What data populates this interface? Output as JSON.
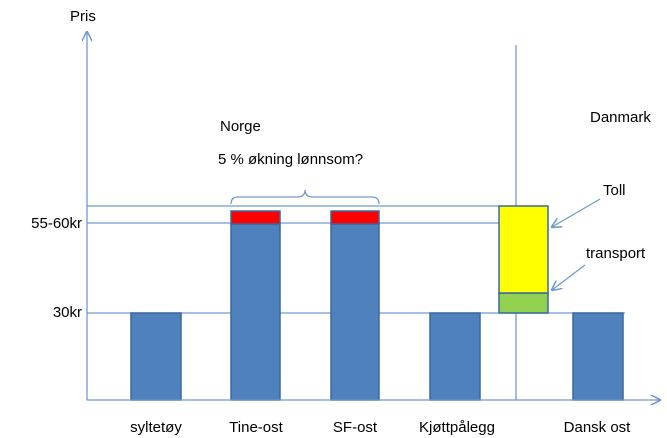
{
  "axis": {
    "y_label": "Pris",
    "ticks": [
      "55-60kr",
      "30kr"
    ]
  },
  "categories": [
    "syltetøy",
    "Tine-ost",
    "SF-ost",
    "Kjøttpålegg",
    "Dansk ost"
  ],
  "annotations": {
    "norway": "Norge",
    "question": "5 % økning lønnsom?",
    "denmark": "Danmark",
    "toll": "Toll",
    "transport": "transport"
  }
}
